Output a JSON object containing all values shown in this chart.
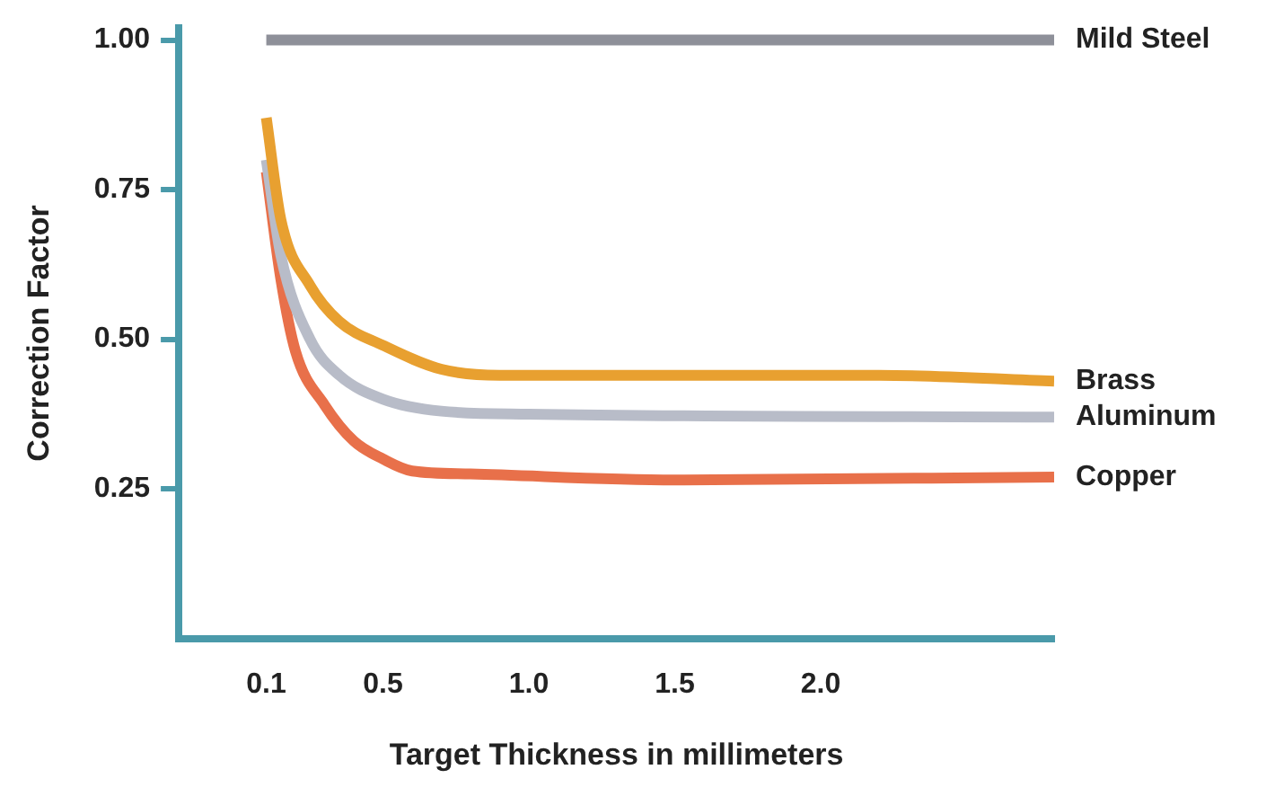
{
  "chart_data": {
    "type": "line",
    "xlabel": "Target Thickness in millimeters",
    "ylabel": "Correction Factor",
    "xlim": [
      -0.2,
      2.8
    ],
    "xticks": [
      0.1,
      0.5,
      {
        "value": 1,
        "label": "1.0"
      },
      1.5,
      {
        "value": 2,
        "label": "2.0"
      }
    ],
    "ylim": [
      0,
      1.02
    ],
    "yticks": [
      0.25,
      {
        "value": 0.5,
        "label": "0.50"
      },
      0.75,
      {
        "value": 1,
        "label": "1.00"
      }
    ],
    "grid": false,
    "legend": false,
    "marker": "none",
    "series": [
      {
        "name": "Mild Steel",
        "color": "#8e9099",
        "x": [
          0.1,
          2.8
        ],
        "values": [
          1.0,
          1.0
        ]
      },
      {
        "name": "Brass",
        "color": "#e8a030",
        "x": [
          0.1,
          0.15,
          0.25,
          0.35,
          0.5,
          0.7,
          0.9,
          1.5,
          2.2,
          2.8
        ],
        "values": [
          0.87,
          0.7,
          0.59,
          0.53,
          0.49,
          0.45,
          0.44,
          0.44,
          0.44,
          0.43
        ]
      },
      {
        "name": "Aluminum",
        "color": "#b8bcc8",
        "x": [
          0.1,
          0.15,
          0.25,
          0.35,
          0.5,
          0.7,
          1.0,
          2.8
        ],
        "values": [
          0.8,
          0.64,
          0.5,
          0.44,
          0.4,
          0.38,
          0.375,
          0.37
        ]
      },
      {
        "name": "Copper",
        "color": "#e8704a",
        "x": [
          0.1,
          0.15,
          0.2,
          0.3,
          0.4,
          0.5,
          0.6,
          0.8,
          1.5,
          2.8
        ],
        "values": [
          0.78,
          0.6,
          0.48,
          0.39,
          0.33,
          0.3,
          0.28,
          0.275,
          0.265,
          0.27
        ]
      }
    ]
  }
}
